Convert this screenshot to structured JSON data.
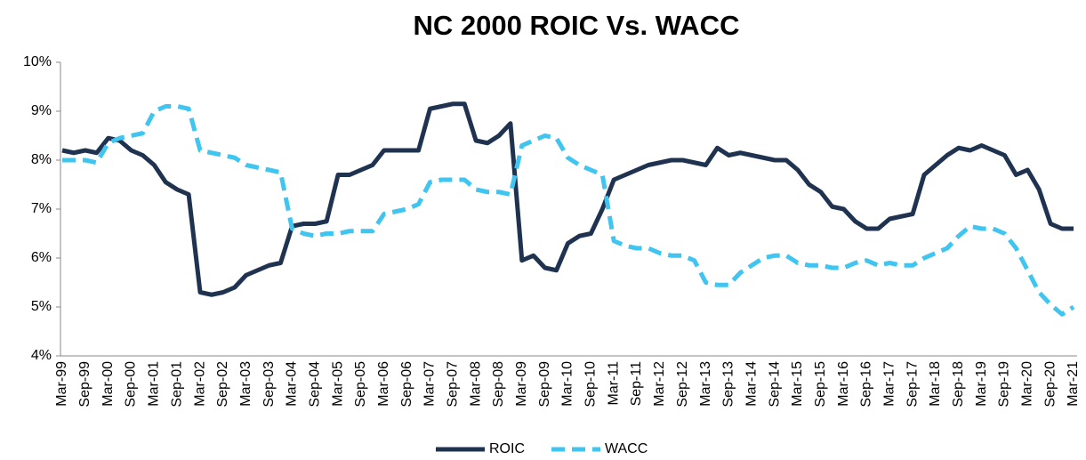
{
  "chart_data": {
    "type": "line",
    "title": "NC 2000 ROIC Vs. WACC",
    "categories": [
      "Mar-99",
      null,
      "Sep-99",
      null,
      "Mar-00",
      null,
      "Sep-00",
      null,
      "Mar-01",
      null,
      "Sep-01",
      null,
      "Mar-02",
      null,
      "Sep-02",
      null,
      "Mar-03",
      null,
      "Sep-03",
      null,
      "Mar-04",
      null,
      "Sep-04",
      null,
      "Mar-05",
      null,
      "Sep-05",
      null,
      "Mar-06",
      null,
      "Sep-06",
      null,
      "Mar-07",
      null,
      "Sep-07",
      null,
      "Mar-08",
      null,
      "Sep-08",
      null,
      "Mar-09",
      null,
      "Sep-09",
      null,
      "Mar-10",
      null,
      "Sep-10",
      null,
      "Mar-11",
      null,
      "Sep-11",
      null,
      "Mar-12",
      null,
      "Sep-12",
      null,
      "Mar-13",
      null,
      "Sep-13",
      null,
      "Mar-14",
      null,
      "Sep-14",
      null,
      "Mar-15",
      null,
      "Sep-15",
      null,
      "Mar-16",
      null,
      "Sep-16",
      null,
      "Mar-17",
      null,
      "Sep-17",
      null,
      "Mar-18",
      null,
      "Sep-18",
      null,
      "Mar-19",
      null,
      "Sep-19",
      null,
      "Mar-20",
      null,
      "Sep-20",
      null,
      "Mar-21"
    ],
    "series": [
      {
        "name": "ROIC",
        "color": "#1f3350",
        "dashed": false,
        "values": [
          8.2,
          8.15,
          8.2,
          8.15,
          8.45,
          8.4,
          8.2,
          8.1,
          7.9,
          7.55,
          7.4,
          7.3,
          5.3,
          5.25,
          5.3,
          5.4,
          5.65,
          5.75,
          5.85,
          5.9,
          6.65,
          6.7,
          6.7,
          6.75,
          7.7,
          7.7,
          7.8,
          7.9,
          8.2,
          8.2,
          8.2,
          8.2,
          9.05,
          9.1,
          9.15,
          9.15,
          8.4,
          8.35,
          8.5,
          8.75,
          5.95,
          6.05,
          5.8,
          5.75,
          6.3,
          6.45,
          6.5,
          7.0,
          7.6,
          7.7,
          7.8,
          7.9,
          7.95,
          8.0,
          8.0,
          7.95,
          7.9,
          8.25,
          8.1,
          8.15,
          8.1,
          8.05,
          8.0,
          8.0,
          7.8,
          7.5,
          7.35,
          7.05,
          7.0,
          6.75,
          6.6,
          6.6,
          6.8,
          6.85,
          6.9,
          7.7,
          7.9,
          8.1,
          8.25,
          8.2,
          8.3,
          8.2,
          8.1,
          7.7,
          7.8,
          7.4,
          6.7,
          6.6,
          6.6
        ]
      },
      {
        "name": "WACC",
        "color": "#40c4f0",
        "dashed": true,
        "values": [
          8.0,
          8.0,
          8.0,
          7.95,
          8.35,
          8.45,
          8.5,
          8.55,
          9.0,
          9.1,
          9.1,
          9.05,
          8.2,
          8.15,
          8.1,
          8.05,
          7.9,
          7.85,
          7.8,
          7.75,
          6.6,
          6.5,
          6.45,
          6.5,
          6.5,
          6.55,
          6.55,
          6.55,
          6.9,
          6.95,
          7.0,
          7.1,
          7.55,
          7.6,
          7.6,
          7.6,
          7.4,
          7.35,
          7.35,
          7.3,
          8.3,
          8.4,
          8.5,
          8.45,
          8.05,
          7.9,
          7.8,
          7.7,
          6.35,
          6.25,
          6.2,
          6.2,
          6.1,
          6.05,
          6.05,
          5.95,
          5.5,
          5.45,
          5.45,
          5.7,
          5.85,
          6.0,
          6.05,
          6.05,
          5.9,
          5.85,
          5.85,
          5.8,
          5.8,
          5.9,
          5.95,
          5.85,
          5.9,
          5.85,
          5.85,
          6.0,
          6.1,
          6.2,
          6.45,
          6.65,
          6.6,
          6.6,
          6.5,
          6.2,
          5.75,
          5.3,
          5.05,
          4.85,
          5.0
        ]
      }
    ],
    "ylim": [
      4,
      10
    ],
    "yticks": [
      {
        "value": 4,
        "label": "4%"
      },
      {
        "value": 5,
        "label": "5%"
      },
      {
        "value": 6,
        "label": "6%"
      },
      {
        "value": 7,
        "label": "7%"
      },
      {
        "value": 8,
        "label": "8%"
      },
      {
        "value": 9,
        "label": "9%"
      },
      {
        "value": 10,
        "label": "10%"
      }
    ],
    "grid": false,
    "legend": "bottom"
  }
}
